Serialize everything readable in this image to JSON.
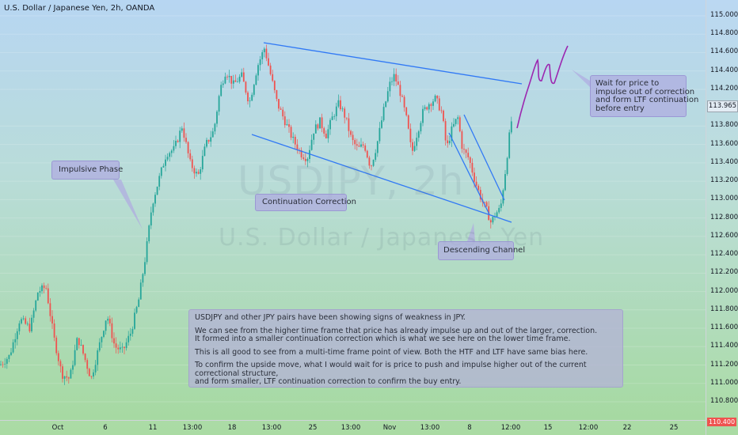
{
  "symbol_title": "U.S. Dollar / Japanese Yen, 2h, OANDA",
  "watermark": {
    "line1": "USDJPY, 2h",
    "line2": "U.S. Dollar / Japanese Yen"
  },
  "annotations": {
    "impulsive_phase": "Impulsive Phase",
    "continuation_correction": "Continuation Correction",
    "descending_channel": "Descending Channel",
    "wait": [
      "Wait for price to",
      "impulse out of correction",
      "and form LTF continuation",
      "before entry"
    ],
    "analysis": [
      [
        "USDJPY and other JPY pairs have been showing signs of weakness in JPY."
      ],
      [
        "We can see from the higher time frame that price has already impulse up and out of the larger, correction.",
        "It formed into a smaller continuation correction which is what we see here on the lower time frame."
      ],
      [
        "This is all good to see from a multi-time frame point of view. Both the HTF and LTF have same bias here."
      ],
      [
        "To confirm the upside move, what I would wait for is price to push and impulse higher out of the current correctional structure,",
        "and form smaller, LTF continuation correction to confirm the buy entry."
      ]
    ]
  },
  "colors": {
    "up": "#26a69a",
    "down": "#ef5350",
    "trendline": "#3179f5",
    "projection": "#9c27b0"
  },
  "chart_data": {
    "type": "candlestick",
    "ylim": [
      110.4,
      115.1
    ],
    "y_ticks": [
      "115.000",
      "114.800",
      "114.600",
      "114.400",
      "114.200",
      "113.800",
      "113.600",
      "113.400",
      "113.200",
      "113.000",
      "112.800",
      "112.600",
      "112.400",
      "112.200",
      "112.000",
      "111.800",
      "111.600",
      "111.400",
      "111.200",
      "111.000",
      "110.800"
    ],
    "x_ticks": [
      "Oct",
      "6",
      "11",
      "13:00",
      "18",
      "13:00",
      "25",
      "13:00",
      "Nov",
      "13:00",
      "8",
      "12:00",
      "15",
      "12:00",
      "22",
      "25"
    ],
    "last_price": "113.965",
    "low_price_label": "110.400",
    "price_path": [
      [
        0,
        111.2
      ],
      [
        12,
        111.3
      ],
      [
        25,
        111.7
      ],
      [
        38,
        111.6
      ],
      [
        48,
        112.0
      ],
      [
        58,
        112.05
      ],
      [
        68,
        111.5
      ],
      [
        78,
        111.1
      ],
      [
        88,
        111.05
      ],
      [
        98,
        111.5
      ],
      [
        106,
        111.3
      ],
      [
        115,
        111.05
      ],
      [
        125,
        111.4
      ],
      [
        135,
        111.75
      ],
      [
        145,
        111.4
      ],
      [
        155,
        111.35
      ],
      [
        165,
        111.55
      ],
      [
        175,
        111.9
      ],
      [
        184,
        112.4
      ],
      [
        192,
        112.95
      ],
      [
        200,
        113.2
      ],
      [
        210,
        113.5
      ],
      [
        220,
        113.55
      ],
      [
        230,
        113.8
      ],
      [
        240,
        113.4
      ],
      [
        250,
        113.25
      ],
      [
        260,
        113.6
      ],
      [
        270,
        113.75
      ],
      [
        278,
        114.2
      ],
      [
        285,
        114.4
      ],
      [
        295,
        114.25
      ],
      [
        305,
        114.35
      ],
      [
        315,
        114.05
      ],
      [
        325,
        114.45
      ],
      [
        334,
        114.65
      ],
      [
        342,
        114.35
      ],
      [
        350,
        114.05
      ],
      [
        360,
        113.85
      ],
      [
        370,
        113.65
      ],
      [
        380,
        113.5
      ],
      [
        388,
        113.45
      ],
      [
        396,
        113.75
      ],
      [
        404,
        113.85
      ],
      [
        412,
        113.7
      ],
      [
        420,
        113.9
      ],
      [
        428,
        114.05
      ],
      [
        436,
        113.9
      ],
      [
        444,
        113.65
      ],
      [
        452,
        113.55
      ],
      [
        460,
        113.6
      ],
      [
        468,
        113.35
      ],
      [
        476,
        113.6
      ],
      [
        484,
        113.95
      ],
      [
        492,
        114.25
      ],
      [
        498,
        114.35
      ],
      [
        506,
        114.15
      ],
      [
        514,
        113.85
      ],
      [
        520,
        113.5
      ],
      [
        526,
        113.7
      ],
      [
        534,
        113.95
      ],
      [
        542,
        114.05
      ],
      [
        550,
        114.1
      ],
      [
        558,
        113.95
      ],
      [
        564,
        113.55
      ],
      [
        570,
        113.75
      ],
      [
        578,
        113.9
      ],
      [
        584,
        113.55
      ],
      [
        592,
        113.45
      ],
      [
        600,
        113.2
      ],
      [
        608,
        113.0
      ],
      [
        614,
        112.9
      ],
      [
        620,
        112.75
      ],
      [
        626,
        112.85
      ],
      [
        632,
        112.9
      ],
      [
        638,
        113.3
      ],
      [
        644,
        113.75
      ],
      [
        648,
        113.98
      ]
    ]
  }
}
